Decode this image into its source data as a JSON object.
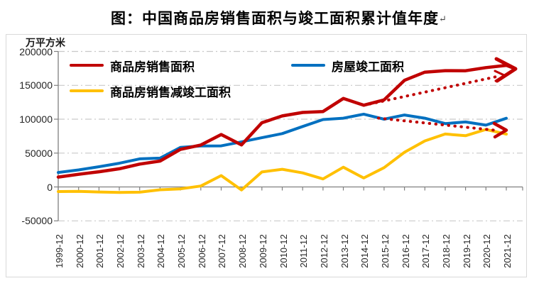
{
  "title": {
    "text": "图：中国商品房销售面积与竣工面积累计值年度",
    "paragraph_mark": "↵"
  },
  "axis_unit": "万平方米",
  "legend": [
    {
      "label": "商品房销售面积",
      "color": "#C00000"
    },
    {
      "label": "房屋竣工面积",
      "color": "#0070C0"
    },
    {
      "label": "商品房销售减竣工面积",
      "color": "#FFC000"
    }
  ],
  "colors": {
    "sales": "#C00000",
    "completion": "#0070C0",
    "difference": "#FFC000",
    "gridline": "#c9c9c9",
    "axis": "#808080",
    "frame": "#d9d9d9"
  },
  "chart_data": {
    "type": "line",
    "title": "图：中国商品房销售面积与竣工面积累计值年度",
    "xlabel": "",
    "ylabel": "万平方米",
    "ylim": [
      -50000,
      200000
    ],
    "ytick_values": [
      200000,
      150000,
      100000,
      50000,
      0,
      -50000
    ],
    "grid": "horizontal dash-dot, zero line solid axis with ticks",
    "legend_position": "top-inside",
    "categories": [
      "1999-12",
      "2000-12",
      "2001-12",
      "2002-12",
      "2003-12",
      "2004-12",
      "2005-12",
      "2006-12",
      "2007-12",
      "2008-12",
      "2009-12",
      "2010-12",
      "2011-12",
      "2012-12",
      "2013-12",
      "2014-12",
      "2015-12",
      "2016-12",
      "2017-12",
      "2018-12",
      "2019-12",
      "2020-12",
      "2021-12"
    ],
    "series": [
      {
        "name": "商品房销售面积",
        "color": "#C00000",
        "values": [
          14557,
          18637,
          22412,
          26808,
          33718,
          38232,
          55486,
          61857,
          77355,
          62089,
          94755,
          104765,
          109946,
          111304,
          130551,
          120649,
          128495,
          157349,
          169408,
          171654,
          171558,
          176086,
          179433
        ]
      },
      {
        "name": "房屋竣工面积",
        "color": "#0070C0",
        "values": [
          21411,
          25105,
          29867,
          34976,
          41464,
          42465,
          58300,
          60460,
          60607,
          66545,
          72677,
          78743,
          89244,
          99425,
          101435,
          107459,
          100039,
          106128,
          101486,
          93550,
          95942,
          91218,
          101412
        ]
      },
      {
        "name": "商品房销售减竣工面积",
        "color": "#FFC000",
        "values": [
          -6854,
          -6468,
          -7455,
          -8168,
          -7746,
          -4233,
          -2814,
          1397,
          16748,
          -4456,
          22078,
          26022,
          20702,
          11879,
          29116,
          13190,
          28456,
          51221,
          67922,
          78104,
          75616,
          84868,
          78021
        ]
      }
    ],
    "annotations": [
      {
        "type": "arrowhead-solid",
        "color": "#C00000",
        "desc": "hand-drawn arrowhead at the 2021 end of the sales line, pointing right"
      },
      {
        "type": "dotted-arrow",
        "color": "#C00000",
        "from": {
          "x": "2014-12",
          "value": 120000
        },
        "to": {
          "x": "2021-12",
          "value": 167000
        },
        "desc": "rising dotted trend arrow along sales line"
      },
      {
        "type": "dotted-arrow",
        "color": "#C00000",
        "from": {
          "x": "2015-12",
          "value": 101000
        },
        "to": {
          "x": "2021-12",
          "value": 83000
        },
        "desc": "declining dotted trend arrow along completion line"
      }
    ]
  }
}
